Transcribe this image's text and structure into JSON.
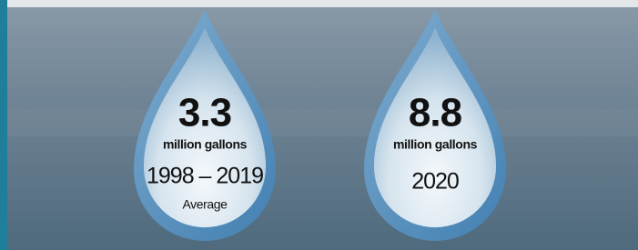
{
  "drops": [
    {
      "value": 3.3,
      "unit": "million gallons",
      "period": "1998 – 2019",
      "note": "Average"
    },
    {
      "value": 8.8,
      "unit": "million gallons",
      "period": "2020"
    }
  ]
}
